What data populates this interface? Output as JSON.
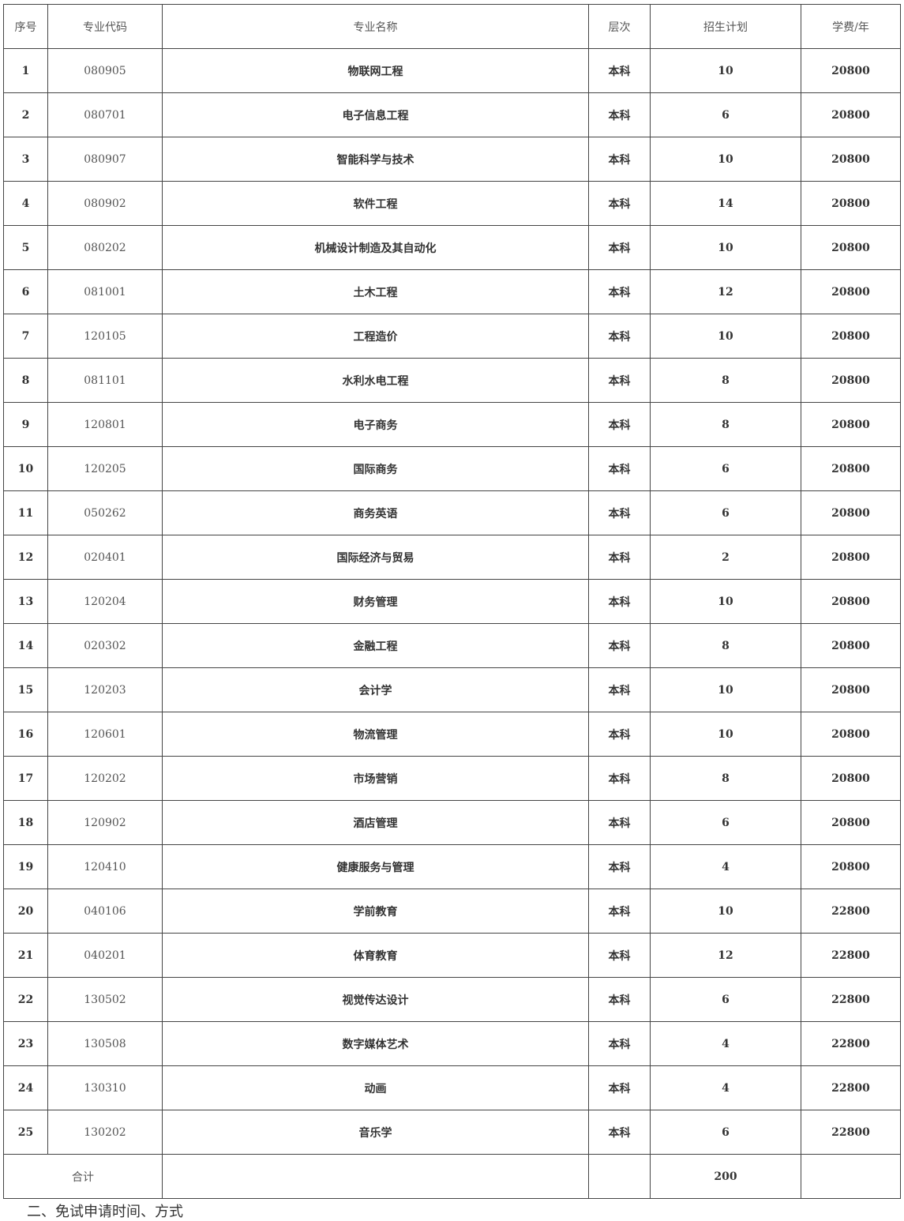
{
  "table": {
    "headers": [
      "序号",
      "专业代码",
      "专业名称",
      "层次",
      "招生计划",
      "学费/年"
    ],
    "rows": [
      [
        "1",
        "080905",
        "物联网工程",
        "本科",
        "10",
        "20800"
      ],
      [
        "2",
        "080701",
        "电子信息工程",
        "本科",
        "6",
        "20800"
      ],
      [
        "3",
        "080907",
        "智能科学与技术",
        "本科",
        "10",
        "20800"
      ],
      [
        "4",
        "080902",
        "软件工程",
        "本科",
        "14",
        "20800"
      ],
      [
        "5",
        "080202",
        "机械设计制造及其自动化",
        "本科",
        "10",
        "20800"
      ],
      [
        "6",
        "081001",
        "土木工程",
        "本科",
        "12",
        "20800"
      ],
      [
        "7",
        "120105",
        "工程造价",
        "本科",
        "10",
        "20800"
      ],
      [
        "8",
        "081101",
        "水利水电工程",
        "本科",
        "8",
        "20800"
      ],
      [
        "9",
        "120801",
        "电子商务",
        "本科",
        "8",
        "20800"
      ],
      [
        "10",
        "120205",
        "国际商务",
        "本科",
        "6",
        "20800"
      ],
      [
        "11",
        "050262",
        "商务英语",
        "本科",
        "6",
        "20800"
      ],
      [
        "12",
        "020401",
        "国际经济与贸易",
        "本科",
        "2",
        "20800"
      ],
      [
        "13",
        "120204",
        "财务管理",
        "本科",
        "10",
        "20800"
      ],
      [
        "14",
        "020302",
        "金融工程",
        "本科",
        "8",
        "20800"
      ],
      [
        "15",
        "120203",
        "会计学",
        "本科",
        "10",
        "20800"
      ],
      [
        "16",
        "120601",
        "物流管理",
        "本科",
        "10",
        "20800"
      ],
      [
        "17",
        "120202",
        "市场营销",
        "本科",
        "8",
        "20800"
      ],
      [
        "18",
        "120902",
        "酒店管理",
        "本科",
        "6",
        "20800"
      ],
      [
        "19",
        "120410",
        "健康服务与管理",
        "本科",
        "4",
        "20800"
      ],
      [
        "20",
        "040106",
        "学前教育",
        "本科",
        "10",
        "22800"
      ],
      [
        "21",
        "040201",
        "体育教育",
        "本科",
        "12",
        "22800"
      ],
      [
        "22",
        "130502",
        "视觉传达设计",
        "本科",
        "6",
        "22800"
      ],
      [
        "23",
        "130508",
        "数字媒体艺术",
        "本科",
        "4",
        "22800"
      ],
      [
        "24",
        "130310",
        "动画",
        "本科",
        "4",
        "22800"
      ],
      [
        "25",
        "130202",
        "音乐学",
        "本科",
        "6",
        "22800"
      ]
    ],
    "total": {
      "label": "合计",
      "plan": "200"
    }
  },
  "next_section": "二、免试申请时间、方式"
}
